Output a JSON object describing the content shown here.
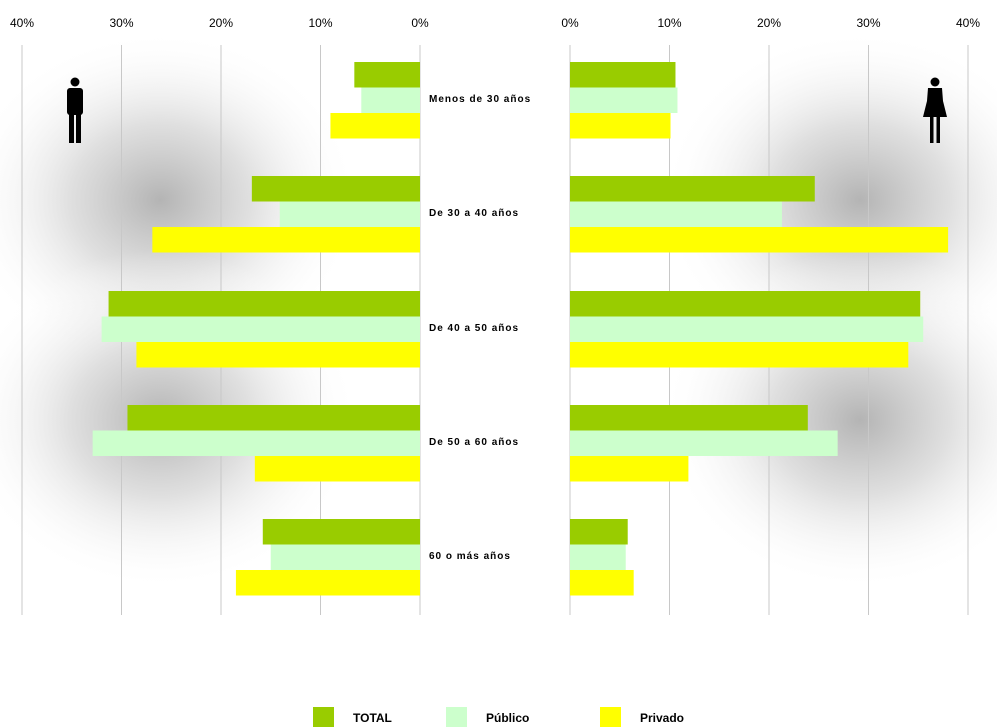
{
  "chart_data": {
    "type": "bar",
    "orientation": "horizontal",
    "layout": "population-pyramid",
    "categories": [
      "Menos de 30 años",
      "De 30 a 40 años",
      "De 40 a 50 años",
      "De 50 a 60 años",
      "60 o más años"
    ],
    "panels": [
      {
        "side": "left",
        "icon": "male-figure-icon",
        "xlim": [
          0,
          40
        ],
        "ticks": [
          "40%",
          "30%",
          "20%",
          "10%",
          "0%"
        ],
        "series": [
          {
            "name": "TOTAL",
            "values": [
              6.6,
              16.9,
              31.3,
              29.4,
              15.8
            ]
          },
          {
            "name": "Público",
            "values": [
              5.9,
              14.1,
              32.0,
              32.9,
              15.0
            ]
          },
          {
            "name": "Privado",
            "values": [
              9.0,
              26.9,
              28.5,
              16.6,
              18.5
            ]
          }
        ]
      },
      {
        "side": "right",
        "icon": "female-figure-icon",
        "xlim": [
          0,
          40
        ],
        "ticks": [
          "0%",
          "10%",
          "20%",
          "30%",
          "40%"
        ],
        "series": [
          {
            "name": "TOTAL",
            "values": [
              10.6,
              24.6,
              35.2,
              23.9,
              5.8
            ]
          },
          {
            "name": "Público",
            "values": [
              10.8,
              21.3,
              35.5,
              26.9,
              5.6
            ]
          },
          {
            "name": "Privado",
            "values": [
              10.1,
              38.0,
              34.0,
              11.9,
              6.4
            ]
          }
        ]
      }
    ],
    "legend": {
      "position": "bottom",
      "entries": [
        {
          "name": "TOTAL",
          "color": "#99cc00"
        },
        {
          "name": "Público",
          "color": "#ccffcc"
        },
        {
          "name": "Privado",
          "color": "#ffff00"
        }
      ]
    },
    "colors": {
      "TOTAL": "#99cc00",
      "Público": "#ccffcc",
      "Privado": "#ffff00",
      "grid": "#c8c8c8"
    },
    "grid": true
  }
}
